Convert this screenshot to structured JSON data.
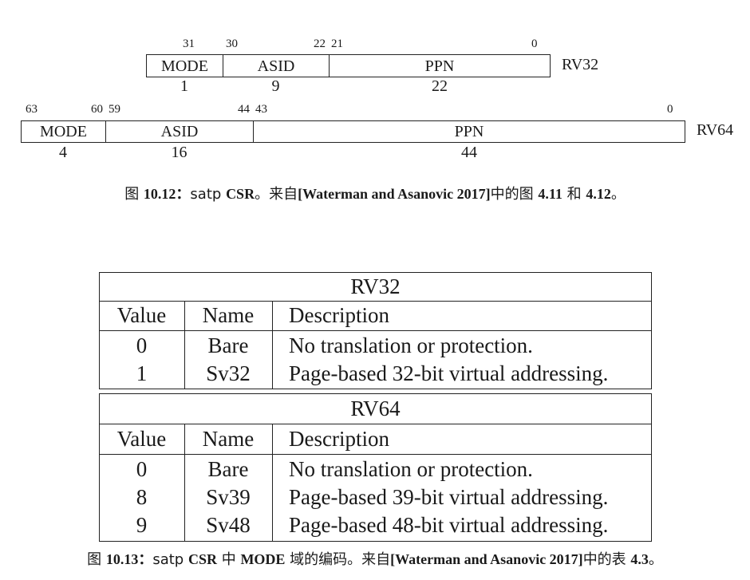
{
  "rv32": {
    "bits": {
      "b31": "31",
      "b30": "30",
      "b22": "22",
      "b21": "21",
      "b0": "0"
    },
    "fields": [
      {
        "name": "MODE",
        "width": "1"
      },
      {
        "name": "ASID",
        "width": "9"
      },
      {
        "name": "PPN",
        "width": "22"
      }
    ],
    "label": "RV32"
  },
  "rv64": {
    "bits": {
      "b63": "63",
      "b60": "60",
      "b59": "59",
      "b44": "44",
      "b43": "43",
      "b0": "0"
    },
    "fields": [
      {
        "name": "MODE",
        "width": "4"
      },
      {
        "name": "ASID",
        "width": "16"
      },
      {
        "name": "PPN",
        "width": "44"
      }
    ],
    "label": "RV64"
  },
  "caption1": {
    "prefix": "图",
    "number": "10.12：",
    "text_a": "satp",
    "text_b": "CSR",
    "text_c": "。来自",
    "ref": "[Waterman and Asanovic 2017]",
    "text_d": "中的图",
    "fig_a": "4.11",
    "text_e": "和",
    "fig_b": "4.12",
    "text_f": "。"
  },
  "table": {
    "rv32_title": "RV32",
    "rv64_title": "RV64",
    "headers": {
      "value": "Value",
      "name": "Name",
      "description": "Description"
    },
    "rv32_rows": [
      {
        "value": "0",
        "name": "Bare",
        "description": "No translation or protection."
      },
      {
        "value": "1",
        "name": "Sv32",
        "description": "Page-based 32-bit virtual addressing."
      }
    ],
    "rv64_rows": [
      {
        "value": "0",
        "name": "Bare",
        "description": "No translation or protection."
      },
      {
        "value": "8",
        "name": "Sv39",
        "description": "Page-based 39-bit virtual addressing."
      },
      {
        "value": "9",
        "name": "Sv48",
        "description": "Page-based 48-bit virtual addressing."
      }
    ]
  },
  "caption2": {
    "prefix": "图",
    "number": "10.13：",
    "text_a": "satp",
    "text_b": "CSR",
    "text_c": "中",
    "mode": "MODE",
    "text_d": "域的编码。来自",
    "ref": "[Waterman and Asanovic 2017]",
    "text_e": "中的表",
    "tbl": "4.3",
    "text_f": "。"
  }
}
